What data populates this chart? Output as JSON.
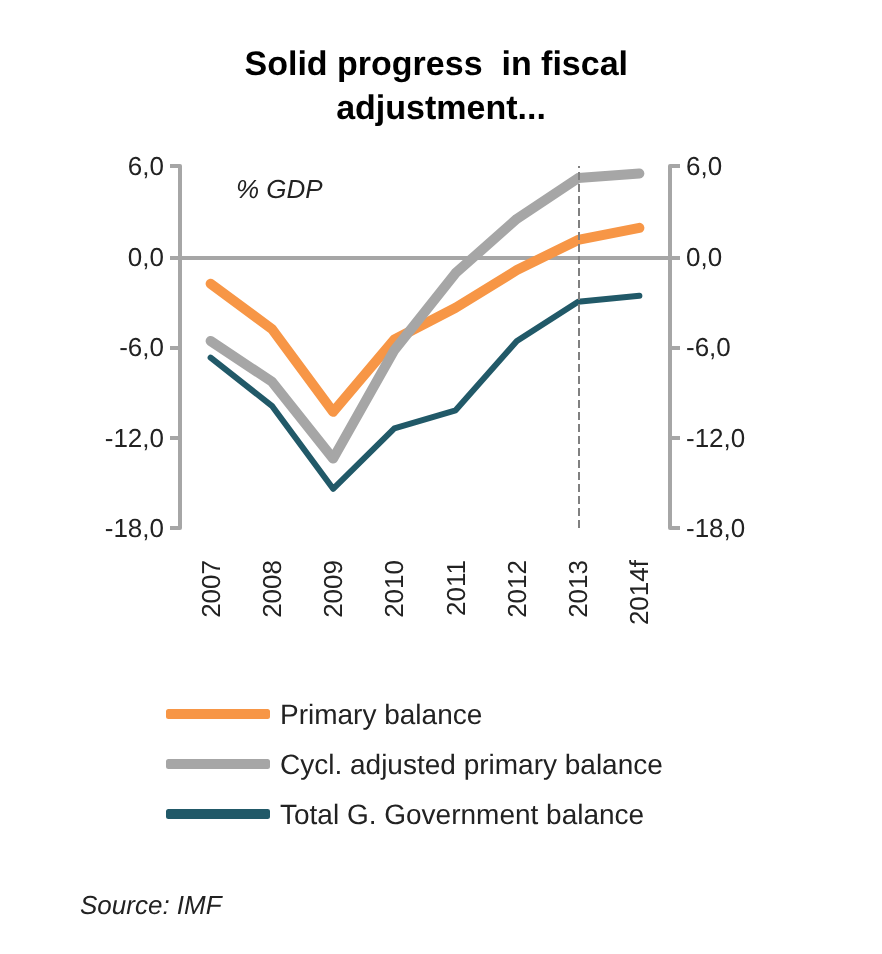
{
  "chart_data": {
    "type": "line",
    "title": "Solid progress  in fiscal adjustment...",
    "categories": [
      "2007",
      "2008",
      "2009",
      "2010",
      "2011",
      "2012",
      "2013",
      "2014f"
    ],
    "series": [
      {
        "name": "Primary balance",
        "color": "#f79646",
        "values": [
          -1.8,
          -4.8,
          -10.3,
          -5.5,
          -3.4,
          -0.9,
          1.1,
          1.9
        ]
      },
      {
        "name": "Cycl. adjusted primary balance",
        "color": "#a6a6a6",
        "values": [
          -5.6,
          -8.3,
          -13.4,
          -6.2,
          -1.1,
          2.5,
          5.2,
          5.5
        ]
      },
      {
        "name": "Total G. Government balance",
        "color": "#215968",
        "values": [
          -6.7,
          -9.9,
          -15.4,
          -11.4,
          -10.2,
          -5.6,
          -3.0,
          -2.6
        ]
      }
    ],
    "ylim": [
      -18,
      6
    ],
    "yticks": [
      {
        "value": -18,
        "label": "-18,0"
      },
      {
        "value": -12,
        "label": "-12,0"
      },
      {
        "value": -6,
        "label": "-6,0"
      },
      {
        "value": 0,
        "label": "0,0"
      },
      {
        "value": 6,
        "label": "6,0"
      }
    ],
    "y2lim": [
      -18,
      6
    ],
    "y2ticks": [
      {
        "value": -18,
        "label": "-18,0"
      },
      {
        "value": -12,
        "label": "-12,0"
      },
      {
        "value": -6,
        "label": "-6,0"
      },
      {
        "value": 0,
        "label": "0,0"
      },
      {
        "value": 6,
        "label": "6,0"
      }
    ],
    "ref_lines": [
      {
        "axis": "x",
        "value": "2013",
        "color": "#808080",
        "line_style": "dashed"
      }
    ],
    "annotations": [
      "% GDP",
      "Source: IMF"
    ],
    "legend": "bottom",
    "grid": false,
    "marker": "none",
    "line_style": "solid"
  }
}
